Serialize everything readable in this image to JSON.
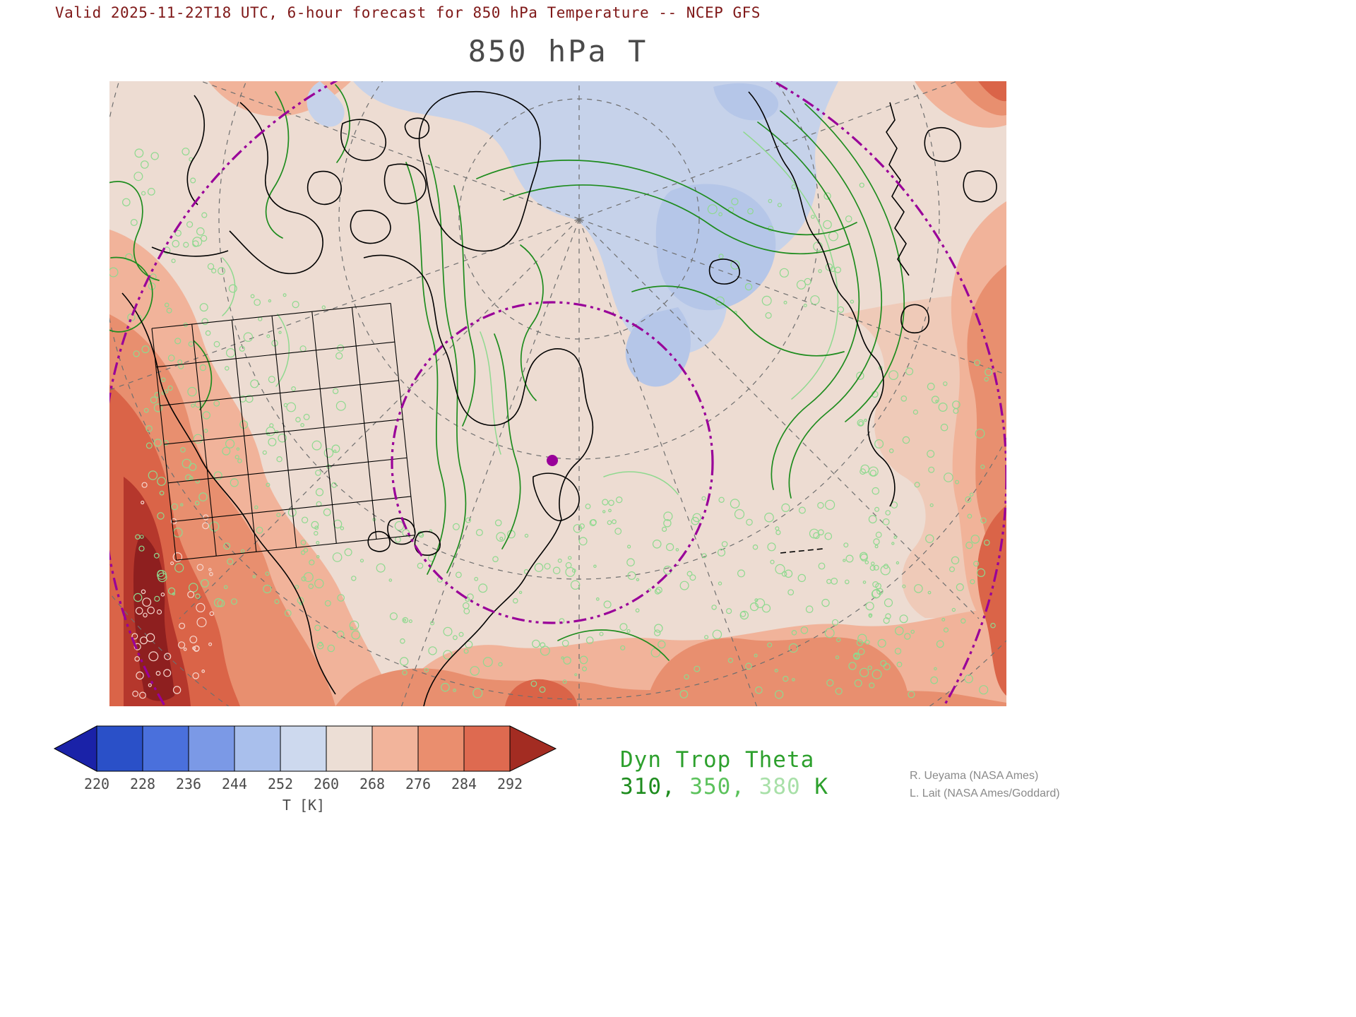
{
  "header": {
    "valid_line": "Valid 2025-11-22T18 UTC, 6-hour forecast for 850 hPa Temperature -- NCEP GFS",
    "title": "850 hPa T"
  },
  "colorbar": {
    "ticks": [
      "220",
      "228",
      "236",
      "244",
      "252",
      "260",
      "268",
      "276",
      "284",
      "292"
    ],
    "unit_label": "T [K]",
    "left_arrow_color": "#1a22a8",
    "right_arrow_color": "#a32c22",
    "segment_colors": [
      "#2a50c8",
      "#4a70dc",
      "#7b99e6",
      "#a9bfec",
      "#cdd9ee",
      "#ecded5",
      "#f2b49b",
      "#ea8e6e",
      "#de6a50"
    ]
  },
  "theta_legend": {
    "title": "Dyn Trop Theta",
    "values": [
      "310",
      "350",
      "380"
    ],
    "separator": ", ",
    "unit": " K",
    "title_color": "#2da02d",
    "unit_color": "#2da02d",
    "value_colors": [
      "#1e8c1e",
      "#5cc25c",
      "#a8e0a8"
    ]
  },
  "credits": {
    "line1": "R. Ueyama (NASA Ames)",
    "line2": "L. Lait (NASA Ames/Goddard)"
  },
  "map": {
    "description": "Polar stereographic map with 850 hPa temperature shading, dynamical tropopause theta contours (310, 350, 380 K) in green, coastlines in black, and dashed purple latitude circles",
    "colors": {
      "base": "#eddcd2",
      "cold": "#c6d2ea",
      "cold_core": "#b5c6e8",
      "warm1": "#f1b39a",
      "warm2": "#e88f6f",
      "warm3": "#da6448",
      "warm4": "#b5372c",
      "warm5": "#8e1f1f",
      "theta_dark": "#1e8c1e",
      "theta_light": "#8fd98f",
      "speckle_white": "#f6d7ce",
      "coast": "#000000",
      "graticule": "#6f6f6f",
      "purple": "#990099"
    }
  }
}
